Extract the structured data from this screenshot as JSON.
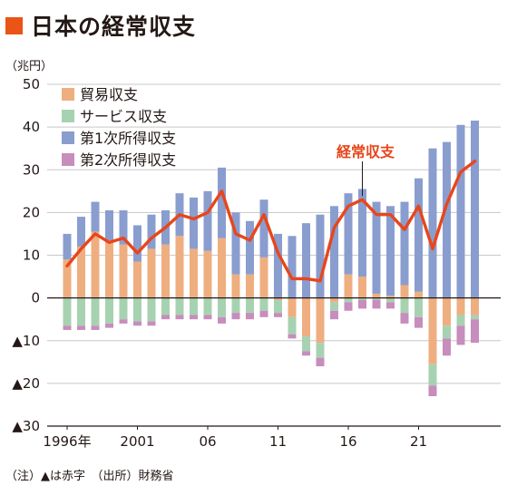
{
  "title": "日本の経常収支",
  "unit_label": "（兆円）",
  "footnote": "（注）▲は赤字　（出所）財務省",
  "colors": {
    "accent": "#ea5414",
    "trade": "#efae80",
    "services": "#a7d2b1",
    "primary_income": "#8a9dcf",
    "secondary_income": "#c78dbd",
    "current_account_line": "#e8461b",
    "grid": "#c8c8c8",
    "axis": "#231815"
  },
  "chart_data": {
    "type": "bar",
    "title": "日本の経常収支",
    "ylabel": "（兆円）",
    "xlabel": "",
    "ylim": [
      -30,
      50
    ],
    "yticks": [
      -30,
      -20,
      -10,
      0,
      10,
      20,
      30,
      40,
      50
    ],
    "ytick_labels": [
      "▲30",
      "▲20",
      "▲10",
      "0",
      "10",
      "20",
      "30",
      "40",
      "50"
    ],
    "grid": true,
    "legend_position": "top-left",
    "stacked": true,
    "x": [
      1996,
      1997,
      1998,
      1999,
      2000,
      2001,
      2002,
      2003,
      2004,
      2005,
      2006,
      2007,
      2008,
      2009,
      2010,
      2011,
      2012,
      2013,
      2014,
      2015,
      2016,
      2017,
      2018,
      2019,
      2020,
      2021,
      2022,
      2023,
      2024,
      2025
    ],
    "xtick_labels": [
      {
        "x": 1996,
        "label": "1996年"
      },
      {
        "x": 2001,
        "label": "2001"
      },
      {
        "x": 2006,
        "label": "06"
      },
      {
        "x": 2011,
        "label": "11"
      },
      {
        "x": 2016,
        "label": "16"
      },
      {
        "x": 2021,
        "label": "21"
      }
    ],
    "series": [
      {
        "name": "貿易収支",
        "key": "trade",
        "color": "#efae80",
        "values": [
          9.0,
          12.0,
          15.5,
          13.5,
          12.5,
          8.5,
          11.5,
          12.5,
          14.5,
          11.5,
          11.0,
          14.0,
          5.5,
          5.5,
          9.5,
          -0.5,
          -4.5,
          -9.0,
          -10.5,
          -1.0,
          5.5,
          5.0,
          1.0,
          0.5,
          3.0,
          1.5,
          -15.5,
          -6.5,
          -4.0,
          -4.0
        ]
      },
      {
        "name": "サービス収支",
        "key": "services",
        "color": "#a7d2b1",
        "values": [
          -6.5,
          -6.5,
          -6.5,
          -6.0,
          -5.0,
          -5.5,
          -5.5,
          -4.0,
          -4.0,
          -4.0,
          -4.0,
          -4.5,
          -3.5,
          -3.5,
          -3.0,
          -3.0,
          -4.0,
          -3.5,
          -3.5,
          -2.0,
          -1.0,
          -0.5,
          -0.5,
          -1.0,
          -3.5,
          -4.5,
          -5.0,
          -3.0,
          -2.5,
          -1.0
        ]
      },
      {
        "name": "第1次所得収支",
        "key": "primary_income",
        "color": "#8a9dcf",
        "values": [
          6.0,
          7.0,
          7.0,
          7.0,
          8.0,
          8.5,
          8.0,
          8.0,
          10.0,
          12.0,
          14.0,
          16.5,
          14.5,
          12.5,
          13.5,
          15.0,
          14.5,
          17.5,
          19.5,
          21.5,
          19.0,
          20.5,
          21.5,
          21.0,
          19.5,
          26.5,
          35.0,
          36.5,
          40.5,
          41.5
        ]
      },
      {
        "name": "第2次所得収支",
        "key": "secondary_income",
        "color": "#c78dbd",
        "values": [
          -1.0,
          -1.0,
          -1.0,
          -1.0,
          -1.0,
          -1.0,
          -1.0,
          -1.0,
          -1.0,
          -1.0,
          -1.0,
          -1.5,
          -1.5,
          -1.5,
          -1.5,
          -1.0,
          -1.0,
          -1.0,
          -2.0,
          -2.0,
          -2.0,
          -2.0,
          -2.0,
          -1.5,
          -2.5,
          -2.5,
          -2.5,
          -4.0,
          -4.5,
          -5.5
        ]
      }
    ],
    "line_series": {
      "name": "経常収支",
      "color": "#e8461b",
      "values": [
        7.5,
        11.5,
        15.0,
        13.0,
        14.0,
        10.5,
        14.0,
        16.5,
        19.5,
        18.5,
        20.0,
        25.0,
        15.0,
        13.5,
        19.5,
        10.5,
        4.5,
        4.5,
        4.0,
        16.5,
        21.5,
        23.0,
        19.5,
        19.5,
        16.0,
        21.5,
        11.5,
        22.0,
        29.5,
        32.0
      ]
    },
    "line_label": "経常収支"
  }
}
